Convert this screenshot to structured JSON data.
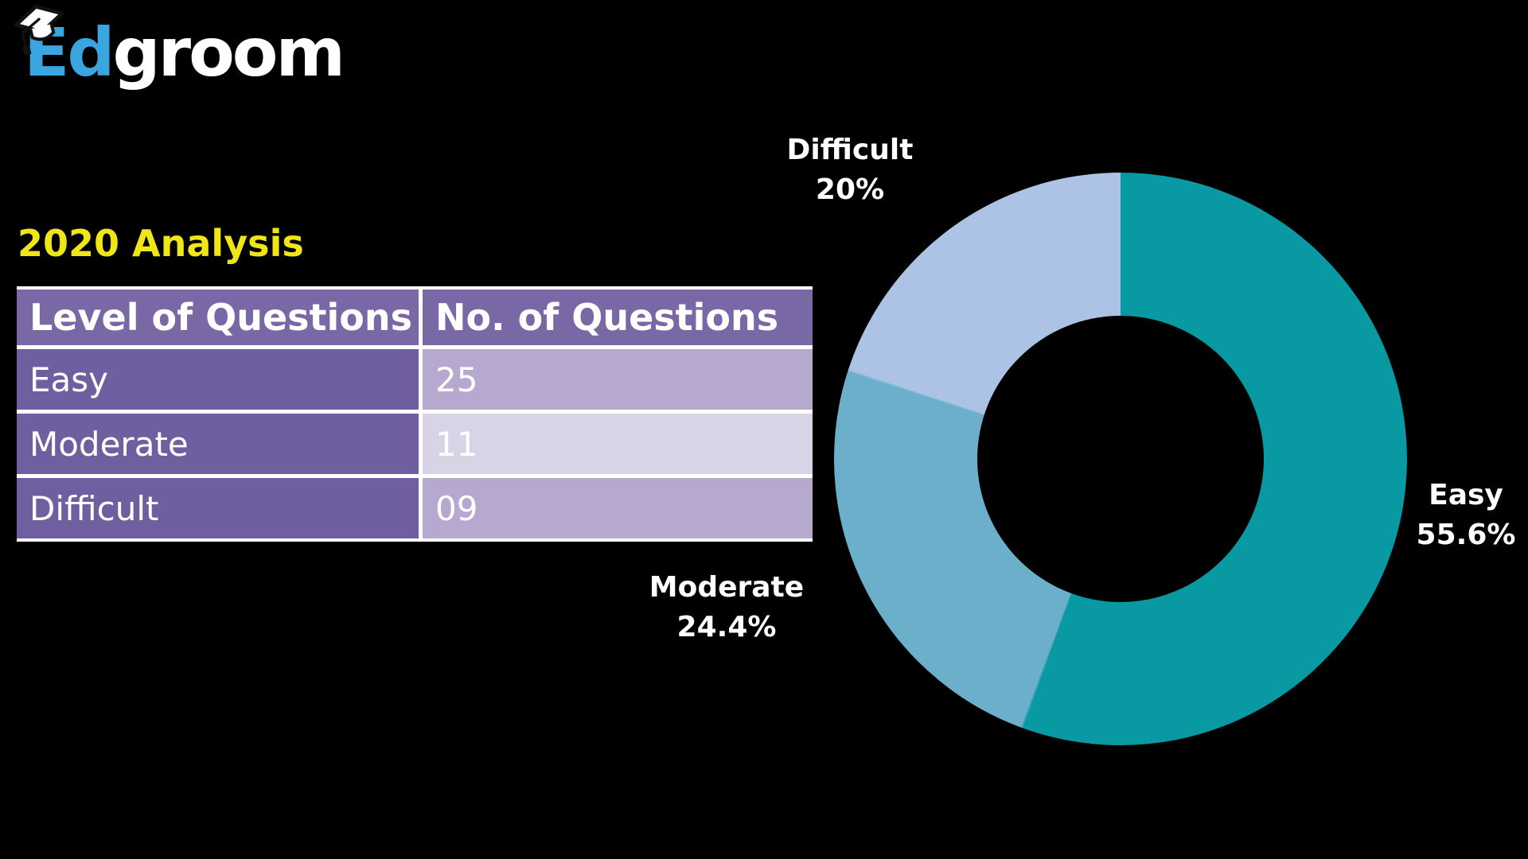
{
  "theme": {
    "bg": "#000000",
    "logo_blue": "#3BA5E0",
    "title_yellow": "#F0E515",
    "table_header_bg": "#7A68A6",
    "table_label_bg": "#6F5FA0",
    "table_value_a": "#B6A8CF",
    "table_value_b": "#D9D3E6",
    "table_divider": "#FFFFFF",
    "text_white": "#FFFFFF"
  },
  "logo": {
    "icon": "graduation-cap-icon",
    "text_primary": "Ed",
    "text_secondary": "groom"
  },
  "title": {
    "text": "2020 Analysis"
  },
  "table": {
    "headers": [
      "Level of Questions",
      "No. of Questions"
    ],
    "rows": [
      {
        "level": "Easy",
        "count": "25"
      },
      {
        "level": "Moderate",
        "count": "11"
      },
      {
        "level": "Difficult",
        "count": "09"
      }
    ]
  },
  "chart_data": {
    "type": "pie",
    "subtype": "donut",
    "title": "",
    "categories": [
      "Easy",
      "Moderate",
      "Difficult"
    ],
    "values": [
      25,
      11,
      9
    ],
    "percentages": [
      55.6,
      24.4,
      20.0
    ],
    "colors": [
      "#0999A2",
      "#6CAFCB",
      "#ACC3E5"
    ],
    "start_angle_deg": 0,
    "direction": "clockwise",
    "inner_radius_ratio": 0.5,
    "legend_position": "none",
    "callouts": [
      {
        "label": "Easy",
        "value_text": "55.6%"
      },
      {
        "label": "Moderate",
        "value_text": "24.4%"
      },
      {
        "label": "Difficult",
        "value_text": "20%"
      }
    ]
  }
}
